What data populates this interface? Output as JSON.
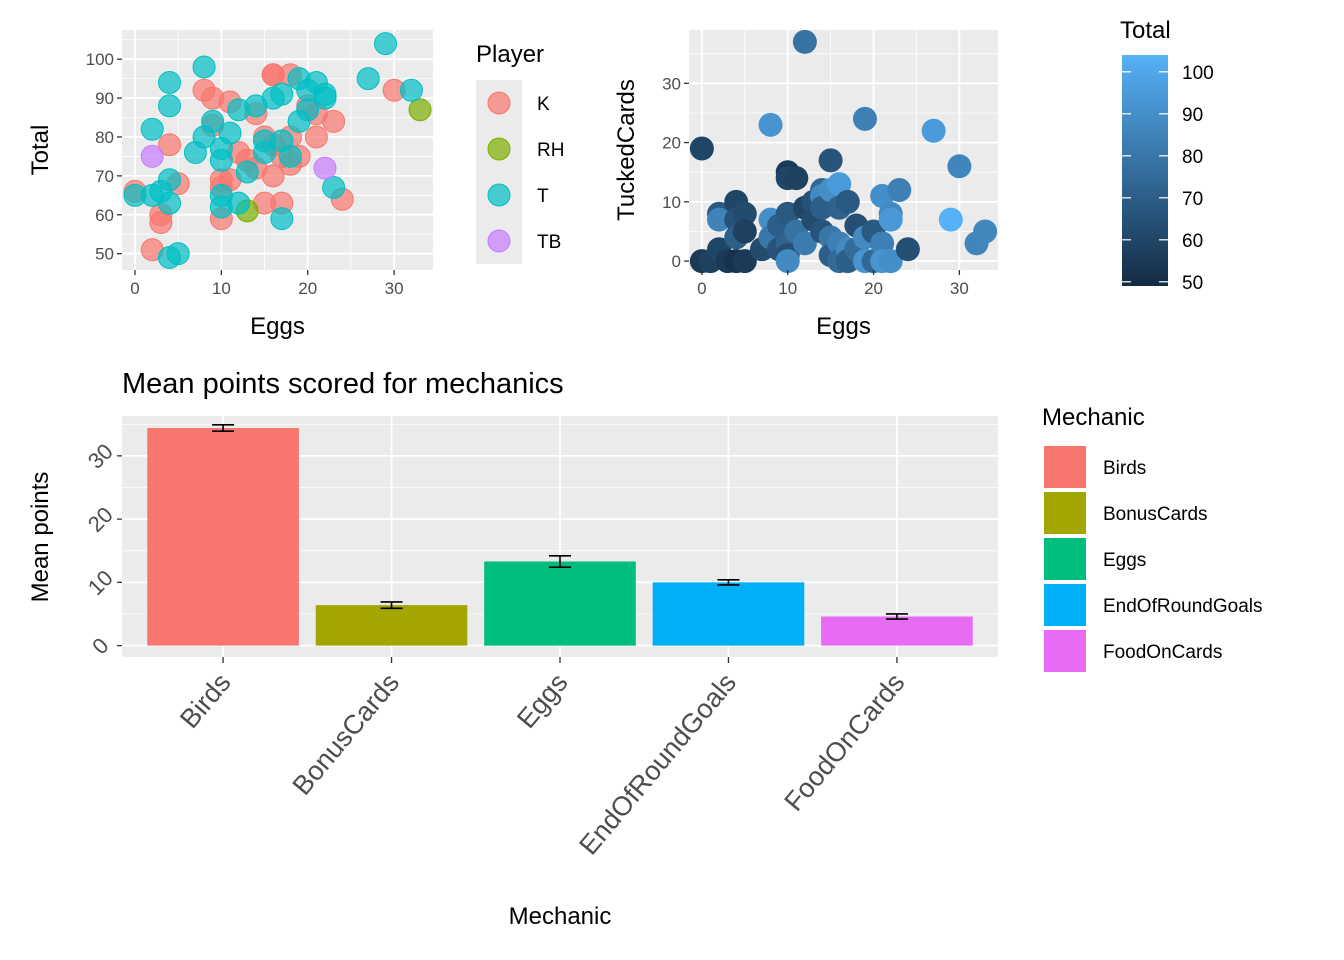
{
  "chart_data": [
    {
      "type": "scatter",
      "xlabel": "Eggs",
      "ylabel": "Total",
      "xlim": [
        -1.5,
        34.5
      ],
      "ylim": [
        45.8,
        107.5
      ],
      "xticks": [
        0,
        10,
        20,
        30
      ],
      "yticks": [
        50,
        60,
        70,
        80,
        90,
        100
      ],
      "legend_title": "Player",
      "legend_placement": "right",
      "grid": true,
      "series": [
        {
          "name": "K",
          "color": "#F8766D",
          "points": [
            [
              0,
              66
            ],
            [
              2,
              51
            ],
            [
              3,
              58
            ],
            [
              3,
              60
            ],
            [
              4,
              78
            ],
            [
              5,
              68
            ],
            [
              8,
              92
            ],
            [
              9,
              90
            ],
            [
              9,
              83
            ],
            [
              10,
              69
            ],
            [
              10,
              67
            ],
            [
              10,
              59
            ],
            [
              11,
              89
            ],
            [
              11,
              69
            ],
            [
              12,
              76
            ],
            [
              13,
              74
            ],
            [
              14,
              86
            ],
            [
              14,
              72
            ],
            [
              15,
              63
            ],
            [
              15,
              80
            ],
            [
              16,
              96
            ],
            [
              16,
              96
            ],
            [
              16,
              78
            ],
            [
              16,
              70
            ],
            [
              17,
              63
            ],
            [
              17,
              75
            ],
            [
              18,
              96
            ],
            [
              18,
              80
            ],
            [
              18,
              73
            ],
            [
              19,
              75
            ],
            [
              20,
              88
            ],
            [
              21,
              80
            ],
            [
              21,
              86
            ],
            [
              23,
              84
            ],
            [
              24,
              64
            ],
            [
              30,
              92
            ]
          ]
        },
        {
          "name": "RH",
          "color": "#7CAE00",
          "points": [
            [
              13,
              61
            ],
            [
              33,
              87
            ]
          ]
        },
        {
          "name": "T",
          "color": "#00BFC4",
          "points": [
            [
              0,
              65
            ],
            [
              2,
              82
            ],
            [
              2,
              65
            ],
            [
              3,
              66
            ],
            [
              4,
              94
            ],
            [
              4,
              88
            ],
            [
              4,
              69
            ],
            [
              4,
              63
            ],
            [
              4,
              49
            ],
            [
              5,
              50
            ],
            [
              7,
              76
            ],
            [
              8,
              98
            ],
            [
              8,
              80
            ],
            [
              9,
              84
            ],
            [
              10,
              77
            ],
            [
              10,
              74
            ],
            [
              10,
              65
            ],
            [
              10,
              62
            ],
            [
              11,
              81
            ],
            [
              12,
              87
            ],
            [
              12,
              63
            ],
            [
              13,
              71
            ],
            [
              14,
              88
            ],
            [
              15,
              79
            ],
            [
              15,
              76
            ],
            [
              16,
              90
            ],
            [
              17,
              59
            ],
            [
              17,
              91
            ],
            [
              17,
              79
            ],
            [
              18,
              75
            ],
            [
              19,
              95
            ],
            [
              19,
              84
            ],
            [
              20,
              92
            ],
            [
              20,
              87
            ],
            [
              21,
              94
            ],
            [
              22,
              90
            ],
            [
              22,
              91
            ],
            [
              23,
              67
            ],
            [
              27,
              95
            ],
            [
              29,
              104
            ],
            [
              32,
              92
            ]
          ]
        },
        {
          "name": "TB",
          "color": "#C77CFF",
          "points": [
            [
              2,
              75
            ],
            [
              22,
              72
            ]
          ]
        }
      ]
    },
    {
      "type": "scatter",
      "xlabel": "Eggs",
      "ylabel": "TuckedCards",
      "xlim": [
        -1.5,
        34.5
      ],
      "ylim": [
        -1.5,
        39
      ],
      "xticks": [
        0,
        10,
        20,
        30
      ],
      "yticks": [
        0,
        10,
        20,
        30
      ],
      "legend_title": "Total",
      "legend_placement": "right",
      "colorbar_range": [
        49,
        104
      ],
      "colorbar_ticks": [
        50,
        60,
        70,
        80,
        90,
        100
      ],
      "color_low": "#132B43",
      "color_high": "#56B1F7",
      "grid": true,
      "points": [
        {
          "x": 0,
          "y": 19,
          "total": 60
        },
        {
          "x": 0,
          "y": 0,
          "total": 55
        },
        {
          "x": 1,
          "y": 0,
          "total": 58
        },
        {
          "x": 2,
          "y": 8,
          "total": 68
        },
        {
          "x": 2,
          "y": 7,
          "total": 85
        },
        {
          "x": 2,
          "y": 2,
          "total": 60
        },
        {
          "x": 3,
          "y": 0,
          "total": 55
        },
        {
          "x": 4,
          "y": 10,
          "total": 60
        },
        {
          "x": 4,
          "y": 7,
          "total": 65
        },
        {
          "x": 4,
          "y": 4,
          "total": 70
        },
        {
          "x": 4,
          "y": 0,
          "total": 52
        },
        {
          "x": 5,
          "y": 8,
          "total": 62
        },
        {
          "x": 5,
          "y": 5,
          "total": 58
        },
        {
          "x": 5,
          "y": 0,
          "total": 55
        },
        {
          "x": 7,
          "y": 2,
          "total": 62
        },
        {
          "x": 8,
          "y": 23,
          "total": 92
        },
        {
          "x": 8,
          "y": 7,
          "total": 90
        },
        {
          "x": 8,
          "y": 4,
          "total": 80
        },
        {
          "x": 9,
          "y": 6,
          "total": 70
        },
        {
          "x": 9,
          "y": 2,
          "total": 66
        },
        {
          "x": 10,
          "y": 15,
          "total": 55
        },
        {
          "x": 10,
          "y": 14,
          "total": 60
        },
        {
          "x": 10,
          "y": 8,
          "total": 68
        },
        {
          "x": 10,
          "y": 3,
          "total": 72
        },
        {
          "x": 10,
          "y": 1,
          "total": 64
        },
        {
          "x": 10,
          "y": 0,
          "total": 88
        },
        {
          "x": 11,
          "y": 14,
          "total": 58
        },
        {
          "x": 11,
          "y": 5,
          "total": 78
        },
        {
          "x": 12,
          "y": 37,
          "total": 78
        },
        {
          "x": 12,
          "y": 9,
          "total": 60
        },
        {
          "x": 12,
          "y": 3,
          "total": 82
        },
        {
          "x": 13,
          "y": 10,
          "total": 65
        },
        {
          "x": 13,
          "y": 7,
          "total": 62
        },
        {
          "x": 14,
          "y": 12,
          "total": 74
        },
        {
          "x": 14,
          "y": 11,
          "total": 88
        },
        {
          "x": 14,
          "y": 9,
          "total": 70
        },
        {
          "x": 14,
          "y": 5,
          "total": 66
        },
        {
          "x": 15,
          "y": 17,
          "total": 66
        },
        {
          "x": 15,
          "y": 12,
          "total": 90
        },
        {
          "x": 15,
          "y": 4,
          "total": 80
        },
        {
          "x": 15,
          "y": 1,
          "total": 70
        },
        {
          "x": 16,
          "y": 13,
          "total": 95
        },
        {
          "x": 16,
          "y": 9,
          "total": 72
        },
        {
          "x": 16,
          "y": 3,
          "total": 84
        },
        {
          "x": 16,
          "y": 0,
          "total": 75
        },
        {
          "x": 17,
          "y": 10,
          "total": 68
        },
        {
          "x": 17,
          "y": 2,
          "total": 88
        },
        {
          "x": 17,
          "y": 0,
          "total": 70
        },
        {
          "x": 18,
          "y": 6,
          "total": 64
        },
        {
          "x": 18,
          "y": 2,
          "total": 76
        },
        {
          "x": 19,
          "y": 24,
          "total": 84
        },
        {
          "x": 19,
          "y": 4,
          "total": 88
        },
        {
          "x": 19,
          "y": 0,
          "total": 92
        },
        {
          "x": 20,
          "y": 5,
          "total": 68
        },
        {
          "x": 20,
          "y": 0,
          "total": 74
        },
        {
          "x": 21,
          "y": 11,
          "total": 90
        },
        {
          "x": 21,
          "y": 3,
          "total": 84
        },
        {
          "x": 21,
          "y": 0,
          "total": 92
        },
        {
          "x": 22,
          "y": 8,
          "total": 88
        },
        {
          "x": 22,
          "y": 7,
          "total": 94
        },
        {
          "x": 22,
          "y": 0,
          "total": 90
        },
        {
          "x": 23,
          "y": 12,
          "total": 84
        },
        {
          "x": 24,
          "y": 2,
          "total": 64
        },
        {
          "x": 27,
          "y": 22,
          "total": 95
        },
        {
          "x": 29,
          "y": 7,
          "total": 104
        },
        {
          "x": 30,
          "y": 16,
          "total": 86
        },
        {
          "x": 32,
          "y": 3,
          "total": 86
        },
        {
          "x": 33,
          "y": 5,
          "total": 87
        }
      ]
    },
    {
      "type": "bar",
      "title": "Mean points scored for mechanics",
      "xlabel": "Mechanic",
      "ylabel": "Mean points",
      "categories": [
        "Birds",
        "BonusCards",
        "Eggs",
        "EndOfRoundGoals",
        "FoodOnCards"
      ],
      "values": [
        34.4,
        6.4,
        13.3,
        10.0,
        4.6
      ],
      "errors": [
        0.5,
        0.5,
        0.9,
        0.4,
        0.4
      ],
      "colors": [
        "#F8766D",
        "#A3A500",
        "#00BF7D",
        "#00B0F6",
        "#E76BF3"
      ],
      "ylim": [
        -1.8,
        36.3
      ],
      "yticks": [
        0,
        10,
        20,
        30
      ],
      "legend_title": "Mechanic",
      "legend_placement": "right",
      "grid": true
    }
  ]
}
